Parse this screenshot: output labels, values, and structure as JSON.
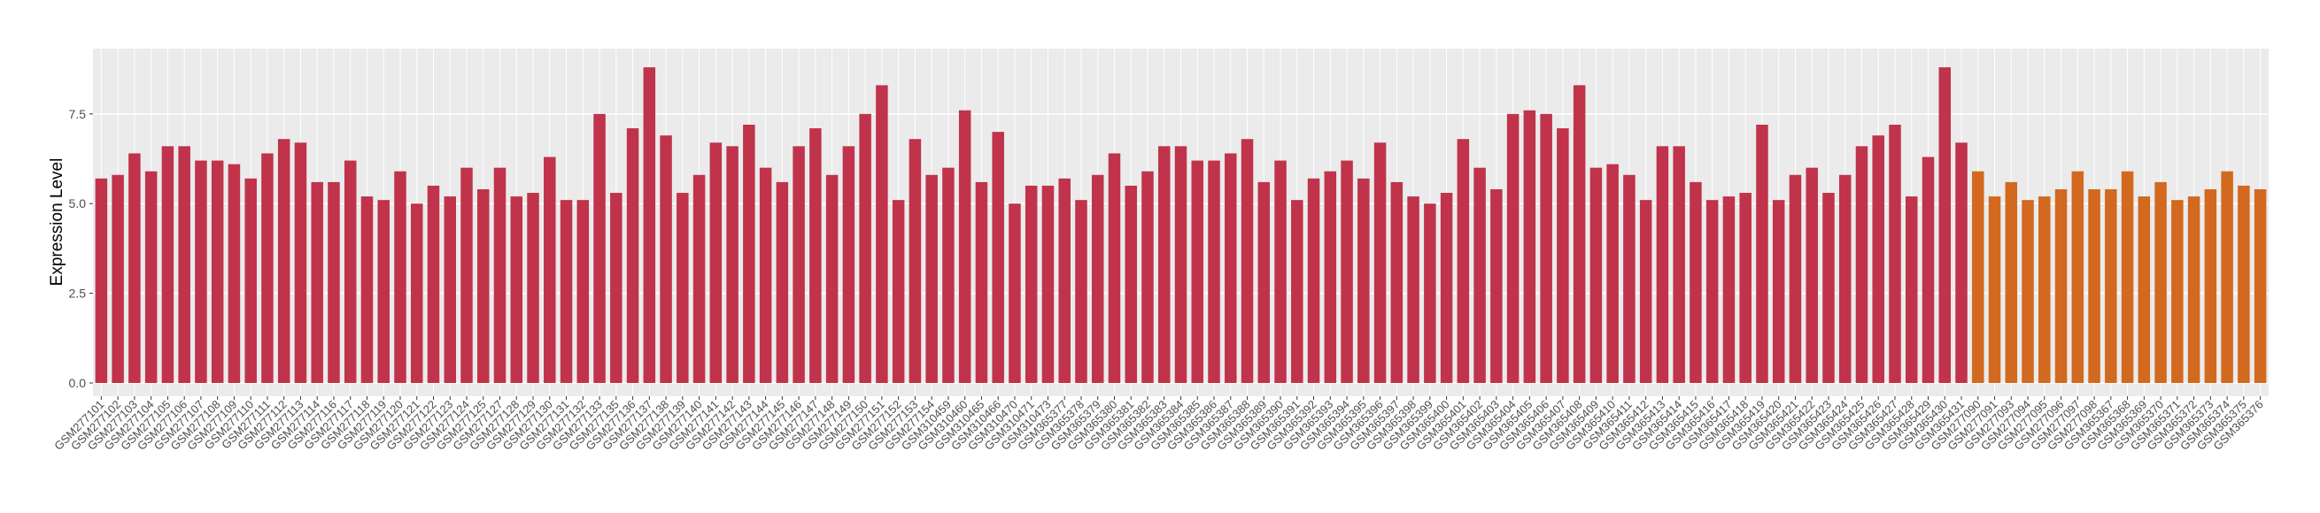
{
  "chart_data": {
    "type": "bar",
    "y_label": "Expression Level",
    "categories": [
      "GSM277101",
      "GSM277102",
      "GSM277103",
      "GSM277104",
      "GSM277105",
      "GSM277106",
      "GSM277107",
      "GSM277108",
      "GSM277109",
      "GSM277110",
      "GSM277111",
      "GSM277112",
      "GSM277113",
      "GSM277114",
      "GSM277116",
      "GSM277117",
      "GSM277118",
      "GSM277119",
      "GSM277120",
      "GSM277121",
      "GSM277122",
      "GSM277123",
      "GSM277124",
      "GSM277125",
      "GSM277127",
      "GSM277128",
      "GSM277129",
      "GSM277130",
      "GSM277131",
      "GSM277132",
      "GSM277133",
      "GSM277135",
      "GSM277136",
      "GSM277137",
      "GSM277138",
      "GSM277139",
      "GSM277140",
      "GSM277141",
      "GSM277142",
      "GSM277143",
      "GSM277144",
      "GSM277145",
      "GSM277146",
      "GSM277147",
      "GSM277148",
      "GSM277149",
      "GSM277150",
      "GSM277151",
      "GSM277152",
      "GSM277153",
      "GSM277154",
      "GSM310459",
      "GSM310460",
      "GSM310465",
      "GSM310466",
      "GSM310470",
      "GSM310471",
      "GSM310473",
      "GSM365377",
      "GSM365378",
      "GSM365379",
      "GSM365380",
      "GSM365381",
      "GSM365382",
      "GSM365383",
      "GSM365384",
      "GSM365385",
      "GSM365386",
      "GSM365387",
      "GSM365388",
      "GSM365389",
      "GSM365390",
      "GSM365391",
      "GSM365392",
      "GSM365393",
      "GSM365394",
      "GSM365395",
      "GSM365396",
      "GSM365397",
      "GSM365398",
      "GSM365399",
      "GSM365400",
      "GSM365401",
      "GSM365402",
      "GSM365403",
      "GSM365404",
      "GSM365405",
      "GSM365406",
      "GSM365407",
      "GSM365408",
      "GSM365409",
      "GSM365410",
      "GSM365411",
      "GSM365412",
      "GSM365413",
      "GSM365414",
      "GSM365415",
      "GSM365416",
      "GSM365417",
      "GSM365418",
      "GSM365419",
      "GSM365420",
      "GSM365421",
      "GSM365422",
      "GSM365423",
      "GSM365424",
      "GSM365425",
      "GSM365426",
      "GSM365427",
      "GSM365428",
      "GSM365429",
      "GSM365430",
      "GSM365431",
      "GSM277090",
      "GSM277091",
      "GSM277093",
      "GSM277094",
      "GSM277095",
      "GSM277096",
      "GSM277097",
      "GSM277098",
      "GSM365367",
      "GSM365368",
      "GSM365369",
      "GSM365370",
      "GSM365371",
      "GSM365372",
      "GSM365373",
      "GSM365374",
      "GSM365375",
      "GSM365376"
    ],
    "values": [
      5.7,
      5.8,
      6.4,
      5.9,
      6.6,
      6.6,
      6.2,
      6.2,
      6.1,
      5.7,
      6.4,
      6.8,
      6.7,
      5.6,
      5.6,
      6.2,
      5.2,
      5.1,
      5.9,
      5.0,
      5.5,
      5.2,
      6.0,
      5.4,
      6.0,
      5.2,
      5.3,
      6.3,
      5.1,
      5.1,
      7.5,
      5.3,
      7.1,
      8.8,
      6.9,
      5.3,
      5.8,
      6.7,
      6.6,
      7.2,
      6.0,
      5.6,
      6.6,
      7.1,
      5.8,
      6.6,
      7.5,
      8.3,
      5.1,
      6.8,
      5.8,
      6.0,
      7.6,
      5.6,
      7.0,
      5.0,
      5.5,
      5.5,
      5.7,
      5.1,
      5.8,
      6.4,
      5.5,
      5.9,
      6.6,
      6.6,
      6.2,
      6.2,
      6.4,
      6.8,
      5.6,
      6.2,
      5.1,
      5.7,
      5.9,
      6.2,
      5.7,
      6.7,
      5.6,
      5.2,
      5.0,
      5.3,
      6.8,
      6.0,
      5.4,
      7.5,
      7.6,
      7.5,
      7.1,
      8.3,
      6.0,
      6.1,
      5.8,
      5.1,
      6.6,
      6.6,
      5.6,
      5.1,
      5.2,
      5.3,
      7.2,
      5.1,
      5.8,
      6.0,
      5.3,
      5.8,
      6.6,
      6.9,
      7.2,
      5.2,
      6.3,
      8.8,
      6.7,
      5.9,
      5.2,
      5.6,
      5.1,
      5.2,
      5.4,
      5.9,
      5.4,
      5.4,
      5.9,
      5.2,
      5.6,
      5.1,
      5.2,
      5.4,
      5.9,
      5.5,
      5.4
    ],
    "colors": [
      "#c0334b",
      "#c0334b",
      "#c0334b",
      "#c0334b",
      "#c0334b",
      "#c0334b",
      "#c0334b",
      "#c0334b",
      "#c0334b",
      "#c0334b",
      "#c0334b",
      "#c0334b",
      "#c0334b",
      "#c0334b",
      "#c0334b",
      "#c0334b",
      "#c0334b",
      "#c0334b",
      "#c0334b",
      "#c0334b",
      "#c0334b",
      "#c0334b",
      "#c0334b",
      "#c0334b",
      "#c0334b",
      "#c0334b",
      "#c0334b",
      "#c0334b",
      "#c0334b",
      "#c0334b",
      "#c0334b",
      "#c0334b",
      "#c0334b",
      "#c0334b",
      "#c0334b",
      "#c0334b",
      "#c0334b",
      "#c0334b",
      "#c0334b",
      "#c0334b",
      "#c0334b",
      "#c0334b",
      "#c0334b",
      "#c0334b",
      "#c0334b",
      "#c0334b",
      "#c0334b",
      "#c0334b",
      "#c0334b",
      "#c0334b",
      "#c0334b",
      "#c0334b",
      "#c0334b",
      "#c0334b",
      "#c0334b",
      "#c0334b",
      "#c0334b",
      "#c0334b",
      "#c0334b",
      "#c0334b",
      "#c0334b",
      "#c0334b",
      "#c0334b",
      "#c0334b",
      "#c0334b",
      "#c0334b",
      "#c0334b",
      "#c0334b",
      "#c0334b",
      "#c0334b",
      "#c0334b",
      "#c0334b",
      "#c0334b",
      "#c0334b",
      "#c0334b",
      "#c0334b",
      "#c0334b",
      "#c0334b",
      "#c0334b",
      "#c0334b",
      "#c0334b",
      "#c0334b",
      "#c0334b",
      "#c0334b",
      "#c0334b",
      "#c0334b",
      "#c0334b",
      "#c0334b",
      "#c0334b",
      "#c0334b",
      "#c0334b",
      "#c0334b",
      "#c0334b",
      "#c0334b",
      "#c0334b",
      "#c0334b",
      "#c0334b",
      "#c0334b",
      "#c0334b",
      "#c0334b",
      "#c0334b",
      "#c0334b",
      "#c0334b",
      "#c0334b",
      "#c0334b",
      "#c0334b",
      "#c0334b",
      "#c0334b",
      "#c0334b",
      "#c0334b",
      "#c0334b",
      "#c0334b",
      "#c0334b",
      "#d2691e",
      "#d2691e",
      "#d2691e",
      "#d2691e",
      "#d2691e",
      "#d2691e",
      "#d2691e",
      "#d2691e",
      "#d2691e",
      "#d2691e",
      "#d2691e",
      "#d2691e",
      "#d2691e",
      "#d2691e",
      "#d2691e",
      "#d2691e",
      "#d2691e",
      "#d2691e"
    ],
    "ylim": [
      -0.37,
      9.32
    ],
    "yticks": [
      {
        "value": 0,
        "label": "0.0"
      },
      {
        "value": 2.5,
        "label": "2.5"
      },
      {
        "value": 5,
        "label": "5.0"
      },
      {
        "value": 7.5,
        "label": "7.5"
      }
    ],
    "grid": true
  }
}
